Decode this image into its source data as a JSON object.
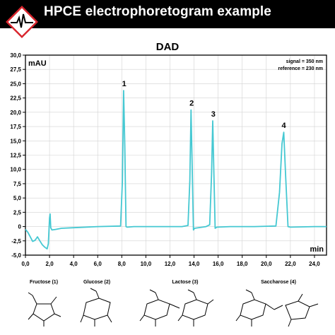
{
  "header": {
    "title": "HPCE electrophoretogram example",
    "logo_icon": "electropherogram-logo-icon"
  },
  "colors": {
    "trace": "#45c8d2",
    "header_bg": "#000000",
    "logo_red": "#d9262e"
  },
  "chart_data": {
    "type": "line",
    "title": "DAD",
    "ylabel": "mAU",
    "xlabel": "min",
    "xlim": [
      0,
      25.0
    ],
    "ylim": [
      -5.0,
      30.0
    ],
    "grid": true,
    "legend": "none",
    "x_ticks": [
      "0,0",
      "2,0",
      "4,0",
      "6,0",
      "8,0",
      "10,0",
      "12,0",
      "14,0",
      "16,0",
      "18,0",
      "20,0",
      "22,0",
      "24,0"
    ],
    "y_ticks": [
      "-5,0",
      "-2,5",
      "0",
      "2,5",
      "5,0",
      "7,5",
      "10,0",
      "12,5",
      "15,0",
      "17,5",
      "20,0",
      "22,5",
      "25,0",
      "27,5",
      "30,0"
    ],
    "annotations": [
      "signal = 350 nm",
      "reference = 230 nm"
    ],
    "series": [
      {
        "x": [
          0.0,
          0.2,
          0.4,
          0.6,
          0.8,
          1.0,
          1.2,
          1.4,
          1.6,
          1.8,
          1.9,
          2.0,
          2.05,
          2.1,
          2.2,
          2.5,
          3.0,
          4.0,
          6.0,
          7.9,
          8.05,
          8.15,
          8.25,
          8.35,
          8.45,
          9.0,
          11.0,
          13.0,
          13.5,
          13.65,
          13.75,
          13.85,
          13.95,
          14.05,
          15.0,
          15.3,
          15.45,
          15.55,
          15.65,
          15.75,
          15.9,
          17.0,
          19.0,
          20.8,
          21.1,
          21.3,
          21.45,
          21.6,
          21.8,
          22.0,
          24.0,
          25.0
        ],
        "y": [
          -0.5,
          -1.0,
          -1.8,
          -2.6,
          -2.4,
          -1.8,
          -2.5,
          -3.2,
          -3.6,
          -3.9,
          -3.0,
          1.5,
          2.2,
          -0.2,
          -0.6,
          -0.5,
          -0.3,
          -0.2,
          0.0,
          0.1,
          8.0,
          23.8,
          14.0,
          0.0,
          -0.1,
          0.0,
          0.0,
          0.0,
          0.2,
          8.0,
          20.4,
          10.0,
          -0.6,
          -0.3,
          0.0,
          0.3,
          9.0,
          18.5,
          9.0,
          -0.3,
          -0.1,
          0.0,
          0.0,
          0.1,
          6.0,
          14.5,
          16.5,
          9.0,
          0.0,
          -0.1,
          0.0,
          0.0
        ]
      }
    ],
    "peaks": [
      {
        "label": "1",
        "x": 8.2,
        "y": 23.8
      },
      {
        "label": "2",
        "x": 13.8,
        "y": 20.4
      },
      {
        "label": "3",
        "x": 15.6,
        "y": 18.5
      },
      {
        "label": "4",
        "x": 21.45,
        "y": 16.5
      }
    ]
  },
  "structures": [
    {
      "name": "Fructose (1)",
      "icon": "fructose-structure-icon"
    },
    {
      "name": "Glucose (2)",
      "icon": "glucose-structure-icon"
    },
    {
      "name": "Lactose (3)",
      "icon": "lactose-structure-icon"
    },
    {
      "name": "Saccharose (4)",
      "icon": "saccharose-structure-icon"
    }
  ]
}
